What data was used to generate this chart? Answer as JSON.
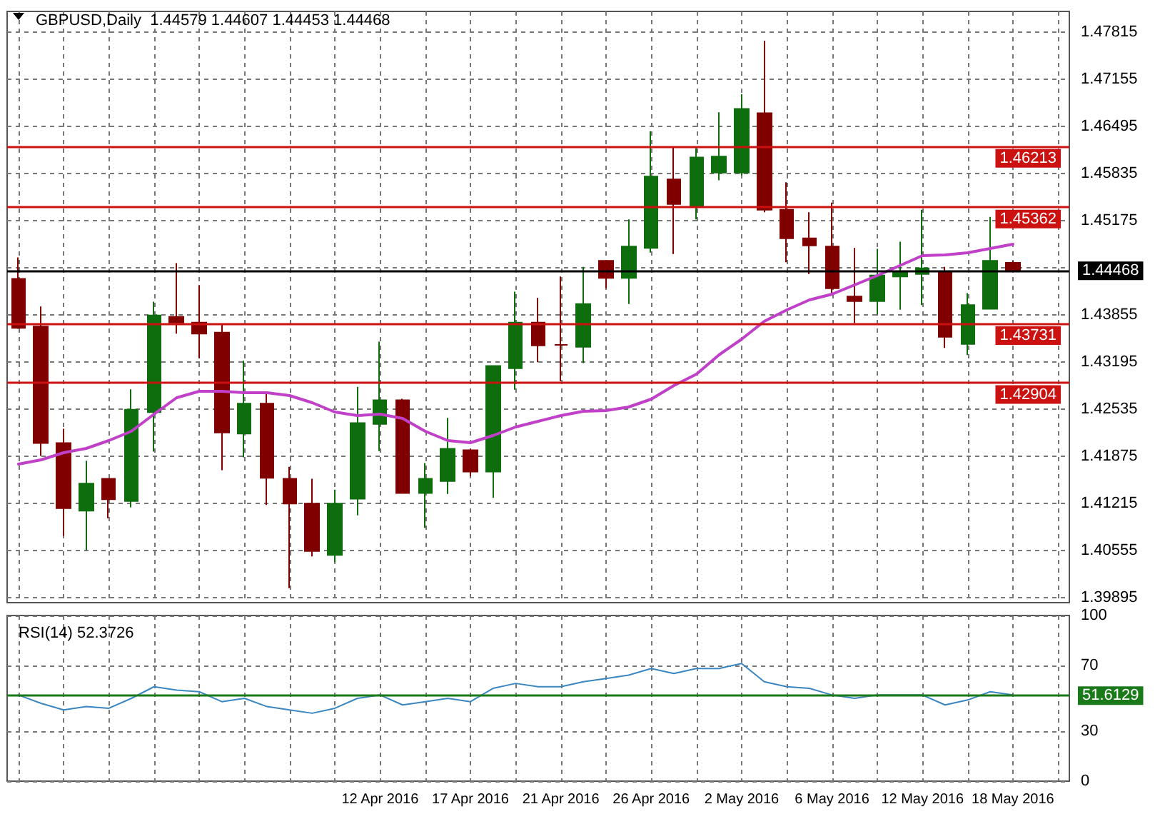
{
  "chart_data": [
    {
      "type": "candlestick",
      "title": "GBPUSD,Daily  1.44579 1.44607 1.44453 1.44468",
      "categories": [
        null,
        null,
        null,
        null,
        null,
        null,
        null,
        null,
        null,
        null,
        null,
        null,
        null,
        null,
        null,
        null,
        null,
        null,
        null,
        null,
        null,
        null,
        null,
        null,
        null,
        null,
        null,
        null,
        null,
        null,
        null,
        null,
        null,
        null,
        null,
        null,
        null,
        null,
        null,
        null,
        null,
        null,
        null,
        null,
        null
      ],
      "series": [
        {
          "ohlc": [
            [
              1.44355,
              1.44655,
              1.43655,
              1.43668
            ],
            [
              1.43688,
              1.43968,
              1.41875,
              1.42055
            ],
            [
              1.42055,
              1.42255,
              1.40755,
              1.41142
            ],
            [
              1.41108,
              1.41808,
              1.40555,
              1.41488
            ],
            [
              1.41555,
              1.41555,
              1.41002,
              1.41268
            ],
            [
              1.41242,
              1.42808,
              1.41155,
              1.42522
            ],
            [
              1.42488,
              1.44035,
              1.41935,
              1.43842
            ],
            [
              1.43822,
              1.44575,
              1.43588,
              1.43742
            ],
            [
              1.43742,
              1.44268,
              1.43242,
              1.43588
            ],
            [
              1.43602,
              1.43722,
              1.41675,
              1.42202
            ],
            [
              1.42188,
              1.43208,
              1.41855,
              1.42608
            ],
            [
              1.42608,
              1.42775,
              1.41188,
              1.41568
            ],
            [
              1.41555,
              1.41722,
              1.40022,
              1.41208
            ],
            [
              1.41208,
              1.41555,
              1.40468,
              1.40542
            ],
            [
              1.40488,
              1.41402,
              1.40388,
              1.41208
            ],
            [
              1.41275,
              1.42842,
              1.41042,
              1.42335
            ],
            [
              1.42322,
              1.43475,
              1.41942,
              1.42655
            ],
            [
              1.42655,
              1.42675,
              1.41355,
              1.41355
            ],
            [
              1.41355,
              1.41775,
              1.40868,
              1.41555
            ],
            [
              1.41522,
              1.42408,
              1.41342,
              1.41975
            ],
            [
              1.41955,
              1.41975,
              1.41588,
              1.41655
            ],
            [
              1.41655,
              1.43135,
              1.41288,
              1.43135
            ],
            [
              1.43102,
              1.44175,
              1.42802,
              1.43742
            ],
            [
              1.43742,
              1.44088,
              1.43188,
              1.43422
            ],
            [
              1.4343,
              1.44388,
              1.42922,
              1.4343
            ],
            [
              1.43402,
              1.44522,
              1.43175,
              1.44002
            ],
            [
              1.44608,
              1.44608,
              1.44222,
              1.44368
            ],
            [
              1.44368,
              1.45188,
              1.44002,
              1.44808
            ],
            [
              1.44788,
              1.46422,
              1.44722,
              1.45788
            ],
            [
              1.45748,
              1.46202,
              1.44702,
              1.45402
            ],
            [
              1.45368,
              1.46188,
              1.45188,
              1.46055
            ],
            [
              1.45842,
              1.46688,
              1.45735,
              1.46068
            ],
            [
              1.45842,
              1.46942,
              1.45802,
              1.46735
            ],
            [
              1.46675,
              1.47688,
              1.45288,
              1.45322
            ],
            [
              1.45322,
              1.45708,
              1.44588,
              1.44922
            ],
            [
              1.44922,
              1.45288,
              1.44422,
              1.44822
            ],
            [
              1.44808,
              1.45422,
              1.44122,
              1.44222
            ],
            [
              1.44108,
              1.44788,
              1.43735,
              1.44042
            ],
            [
              1.44042,
              1.44775,
              1.43855,
              1.44402
            ],
            [
              1.44388,
              1.44875,
              1.43922,
              1.44455
            ],
            [
              1.44422,
              1.45322,
              1.43988,
              1.44502
            ],
            [
              1.44455,
              1.44522,
              1.43388,
              1.43542
            ],
            [
              1.43442,
              1.44155,
              1.43288,
              1.43988
            ],
            [
              1.43935,
              1.45222,
              1.43935,
              1.44608
            ],
            [
              1.44579,
              1.44607,
              1.44453,
              1.44468
            ]
          ],
          "colors": [
            "#800000",
            "#800000",
            "#800000",
            "#0e6e0e",
            "#800000",
            "#0e6e0e",
            "#0e6e0e",
            "#800000",
            "#800000",
            "#800000",
            "#0e6e0e",
            "#800000",
            "#800000",
            "#800000",
            "#0e6e0e",
            "#0e6e0e",
            "#0e6e0e",
            "#800000",
            "#0e6e0e",
            "#0e6e0e",
            "#800000",
            "#0e6e0e",
            "#0e6e0e",
            "#800000",
            "#800000",
            "#0e6e0e",
            "#800000",
            "#0e6e0e",
            "#0e6e0e",
            "#800000",
            "#0e6e0e",
            "#0e6e0e",
            "#0e6e0e",
            "#800000",
            "#800000",
            "#800000",
            "#800000",
            "#800000",
            "#0e6e0e",
            "#0e6e0e",
            "#0e6e0e",
            "#800000",
            "#0e6e0e",
            "#0e6e0e",
            "#800000"
          ]
        },
        {
          "type": "line",
          "color": "#c040c8",
          "values": [
            1.4176,
            1.4182,
            1.4192,
            1.4198,
            1.4209,
            1.4222,
            1.4246,
            1.4269,
            1.4278,
            1.4278,
            1.4276,
            1.4276,
            1.4272,
            1.4262,
            1.4249,
            1.4244,
            1.4246,
            1.424,
            1.4222,
            1.4209,
            1.4206,
            1.4216,
            1.4228,
            1.4236,
            1.4244,
            1.425,
            1.4251,
            1.4256,
            1.4267,
            1.4286,
            1.4302,
            1.4329,
            1.4351,
            1.4376,
            1.4392,
            1.4406,
            1.4414,
            1.4427,
            1.444,
            1.4454,
            1.4468,
            1.4469,
            1.4472,
            1.4478,
            1.4484
          ]
        }
      ],
      "ylim": [
        1.3982,
        1.481
      ],
      "yticks": [
        1.39895,
        1.40555,
        1.41215,
        1.41875,
        1.42535,
        1.43195,
        1.43855,
        {
          "value": 1.44515,
          "label": null
        },
        1.45175,
        1.45835,
        1.46495,
        1.47155,
        1.47815
      ],
      "ref_lines": [
        {
          "axis": "y",
          "value": 1.46213,
          "label": "1.46213",
          "color": "#cc1111",
          "line_style": "solid"
        },
        {
          "axis": "y",
          "value": 1.45362,
          "label": "1.45362",
          "color": "#cc1111",
          "line_style": "solid"
        },
        {
          "axis": "y",
          "value": 1.44468,
          "label": "1.44468",
          "color": "#000000",
          "line_style": "solid"
        },
        {
          "axis": "y",
          "value": 1.43731,
          "label": "1.43731",
          "color": "#cc1111",
          "line_style": "solid"
        },
        {
          "axis": "y",
          "value": 1.42904,
          "label": "1.42904",
          "color": "#cc1111",
          "line_style": "solid"
        }
      ],
      "grid": true,
      "marker": "none",
      "line_style": "solid",
      "tick_labels": "y"
    },
    {
      "type": "line",
      "title": "RSI(14) 52.3726",
      "categories": [
        null,
        null,
        null,
        null,
        null,
        null,
        null,
        null,
        null,
        null,
        null,
        null,
        null,
        null,
        null,
        null,
        "12 Apr 2016",
        null,
        null,
        null,
        "17 Apr 2016",
        null,
        null,
        null,
        "21 Apr 2016",
        null,
        null,
        null,
        "26 Apr 2016",
        null,
        null,
        null,
        "2 May 2016",
        null,
        null,
        null,
        "6 May 2016",
        null,
        null,
        null,
        "12 May 2016",
        null,
        null,
        null,
        "18 May 2016"
      ],
      "series": [
        {
          "color": "#3a86c0",
          "values": [
            52,
            47,
            43,
            45,
            44,
            50,
            57,
            55,
            54,
            48,
            50,
            45,
            43,
            41,
            44,
            50,
            52,
            46,
            48,
            50,
            48,
            56,
            59,
            57,
            57,
            60,
            62,
            64,
            68,
            65,
            68,
            68,
            71,
            60,
            57,
            56,
            52,
            50,
            52,
            52,
            52,
            46,
            49,
            54,
            52
          ]
        }
      ],
      "ylim": [
        0,
        100
      ],
      "yticks": [
        0,
        30,
        70,
        100
      ],
      "ref_lines": [
        {
          "axis": "y",
          "value": 51.6129,
          "label": "51.6129",
          "color": "#1a7a1a",
          "line_style": "solid"
        }
      ],
      "grid": true,
      "marker": "none",
      "line_style": "solid"
    }
  ]
}
